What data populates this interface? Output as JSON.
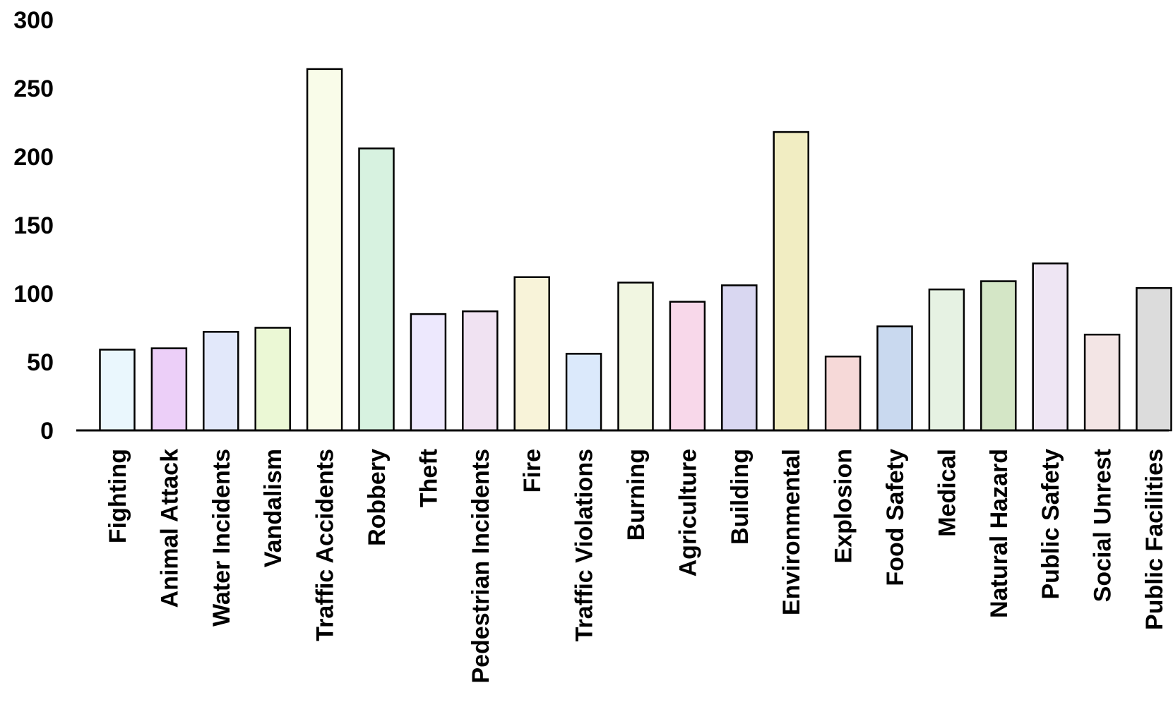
{
  "chart_data": {
    "type": "bar",
    "title": "",
    "xlabel": "",
    "ylabel": "",
    "ylim": [
      0,
      300
    ],
    "yticks": [
      0,
      50,
      100,
      150,
      200,
      250,
      300
    ],
    "grid": false,
    "legend": "none",
    "categories": [
      "Fighting",
      "Animal Attack",
      "Water Incidents",
      "Vandalism",
      "Traffic Accidents",
      "Robbery",
      "Theft",
      "Pedestrian Incidents",
      "Fire",
      "Traffic Violations",
      "Burning",
      "Agriculture",
      "Building",
      "Environmental",
      "Explosion",
      "Food Safety",
      "Medical",
      "Natural Hazard",
      "Public Safety",
      "Social Unrest",
      "Public Facilities"
    ],
    "values": [
      59,
      60,
      72,
      75,
      264,
      206,
      85,
      87,
      112,
      56,
      108,
      94,
      106,
      218,
      54,
      76,
      103,
      109,
      122,
      70,
      104
    ],
    "colors": [
      "#eaf7fd",
      "#eccff8",
      "#e2e8fa",
      "#ebf8d5",
      "#f9fce9",
      "#d7f2e0",
      "#ede8fd",
      "#f0e2f2",
      "#f8f3d9",
      "#dbe9fb",
      "#f1f6e1",
      "#f8d8ea",
      "#d9d7f1",
      "#f1edc2",
      "#f6d9d8",
      "#c9d9ef",
      "#e6f2e3",
      "#d4e6c6",
      "#eee5f3",
      "#f3e5e5",
      "#dcdcdc"
    ]
  }
}
